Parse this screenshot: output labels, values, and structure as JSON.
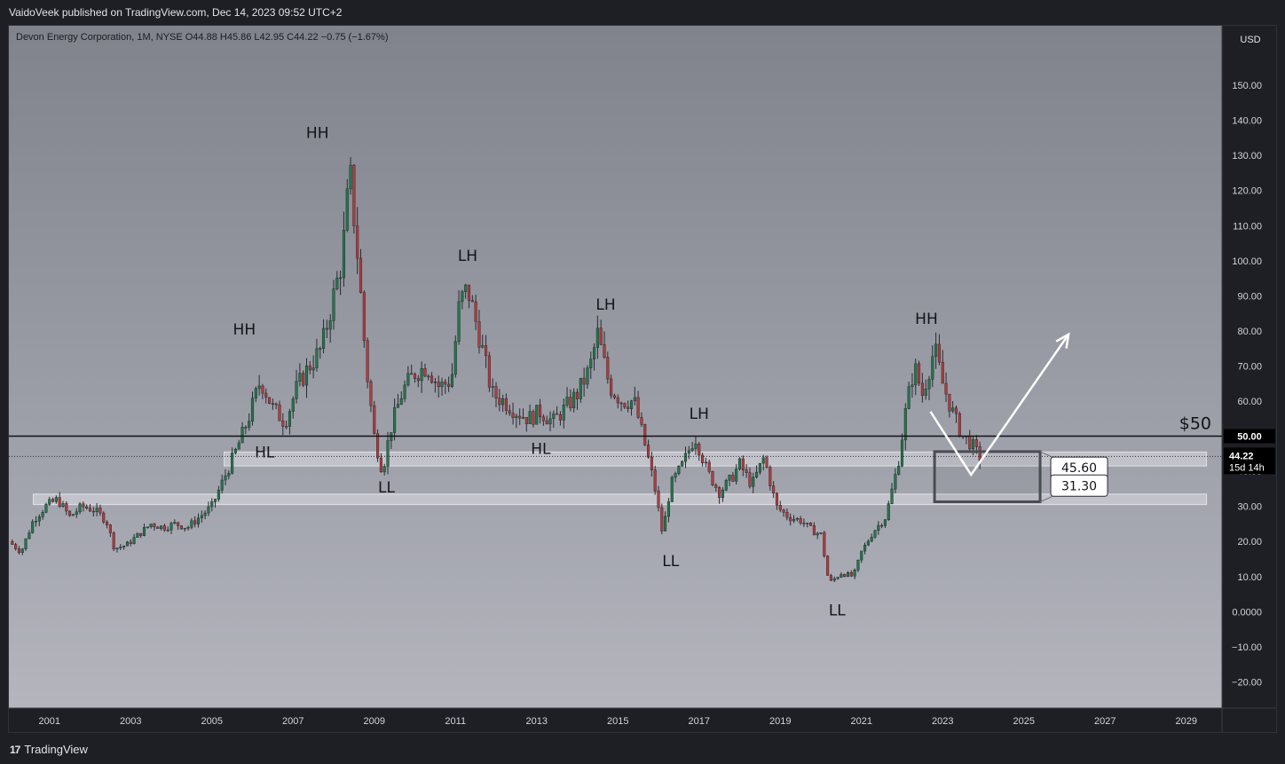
{
  "header": {
    "publisher": "VaidoVeek published on TradingView.com, Dec 14, 2023 09:52 UTC+2"
  },
  "legend": {
    "text": "Devon Energy Corporation, 1M, NYSE  O44.88  H45.86  L42.95  C44.22  −0.75 (−1.67%)"
  },
  "currency": "USD",
  "footer": {
    "brand": "TradingView",
    "brand_mark": "17"
  },
  "colors": {
    "up": "#1e7a4a",
    "down": "#b83a3a",
    "label_bg": "#1e1f24"
  },
  "chart_data": {
    "type": "candlestick",
    "title": "Devon Energy Corporation, 1M, NYSE",
    "ohlc": {
      "open": 44.88,
      "high": 45.86,
      "low": 42.95,
      "close": 44.22,
      "change": -0.75,
      "change_pct": -1.67
    },
    "x_ticks": [
      "2001",
      "2003",
      "2005",
      "2007",
      "2009",
      "2011",
      "2013",
      "2015",
      "2017",
      "2019",
      "2021",
      "2023",
      "2025",
      "2027",
      "2029"
    ],
    "y_ticks": [
      "150.00",
      "140.00",
      "130.00",
      "120.00",
      "110.00",
      "100.00",
      "90.00",
      "80.00",
      "70.00",
      "60.00",
      "50.00",
      "40.00",
      "30.00",
      "20.00",
      "10.00",
      "0.0000",
      "−10.00",
      "−20.00"
    ],
    "ylim": [
      -20,
      150
    ],
    "price_path": [
      [
        2000.0,
        20
      ],
      [
        2000.3,
        17
      ],
      [
        2000.6,
        26
      ],
      [
        2000.9,
        30
      ],
      [
        2001.2,
        32
      ],
      [
        2001.5,
        27
      ],
      [
        2001.8,
        30
      ],
      [
        2002.1,
        29
      ],
      [
        2002.4,
        26
      ],
      [
        2002.6,
        18
      ],
      [
        2002.9,
        19
      ],
      [
        2003.2,
        22
      ],
      [
        2003.5,
        25
      ],
      [
        2003.8,
        24
      ],
      [
        2004.1,
        25
      ],
      [
        2004.4,
        24
      ],
      [
        2004.7,
        27
      ],
      [
        2005.0,
        30
      ],
      [
        2005.3,
        38
      ],
      [
        2005.6,
        46
      ],
      [
        2005.9,
        55
      ],
      [
        2006.2,
        66
      ],
      [
        2006.5,
        58
      ],
      [
        2006.8,
        54
      ],
      [
        2007.1,
        64
      ],
      [
        2007.4,
        70
      ],
      [
        2007.7,
        75
      ],
      [
        2008.0,
        90
      ],
      [
        2008.2,
        100
      ],
      [
        2008.4,
        125
      ],
      [
        2008.6,
        100
      ],
      [
        2008.8,
        70
      ],
      [
        2009.0,
        50
      ],
      [
        2009.2,
        40
      ],
      [
        2009.4,
        52
      ],
      [
        2009.7,
        63
      ],
      [
        2010.0,
        68
      ],
      [
        2010.3,
        70
      ],
      [
        2010.6,
        64
      ],
      [
        2010.9,
        66
      ],
      [
        2011.1,
        88
      ],
      [
        2011.3,
        92
      ],
      [
        2011.6,
        78
      ],
      [
        2011.9,
        62
      ],
      [
        2012.2,
        60
      ],
      [
        2012.5,
        57
      ],
      [
        2012.8,
        55
      ],
      [
        2013.1,
        57
      ],
      [
        2013.4,
        54
      ],
      [
        2013.7,
        58
      ],
      [
        2014.0,
        62
      ],
      [
        2014.3,
        69
      ],
      [
        2014.5,
        79
      ],
      [
        2014.8,
        64
      ],
      [
        2015.1,
        60
      ],
      [
        2015.4,
        60
      ],
      [
        2015.7,
        46
      ],
      [
        2015.9,
        36
      ],
      [
        2016.1,
        22
      ],
      [
        2016.3,
        36
      ],
      [
        2016.6,
        42
      ],
      [
        2016.9,
        50
      ],
      [
        2017.2,
        40
      ],
      [
        2017.5,
        34
      ],
      [
        2017.8,
        38
      ],
      [
        2018.0,
        42
      ],
      [
        2018.3,
        36
      ],
      [
        2018.6,
        44
      ],
      [
        2018.9,
        30
      ],
      [
        2019.2,
        27
      ],
      [
        2019.5,
        26
      ],
      [
        2019.8,
        23
      ],
      [
        2020.0,
        22
      ],
      [
        2020.2,
        8
      ],
      [
        2020.5,
        11
      ],
      [
        2020.8,
        10
      ],
      [
        2021.0,
        17
      ],
      [
        2021.3,
        23
      ],
      [
        2021.6,
        27
      ],
      [
        2021.9,
        42
      ],
      [
        2022.1,
        58
      ],
      [
        2022.3,
        70
      ],
      [
        2022.5,
        62
      ],
      [
        2022.8,
        75
      ],
      [
        2023.0,
        65
      ],
      [
        2023.3,
        55
      ],
      [
        2023.5,
        50
      ],
      [
        2023.7,
        48
      ],
      [
        2023.9,
        44
      ]
    ],
    "annotations": {
      "pivots": [
        {
          "text": "HH",
          "x": 2007.6,
          "y": 135
        },
        {
          "text": "HH",
          "x": 2005.8,
          "y": 79
        },
        {
          "text": "HL",
          "x": 2006.3,
          "y": 44
        },
        {
          "text": "LL",
          "x": 2009.3,
          "y": 34
        },
        {
          "text": "LH",
          "x": 2011.3,
          "y": 100
        },
        {
          "text": "HL",
          "x": 2013.1,
          "y": 45
        },
        {
          "text": "LH",
          "x": 2014.7,
          "y": 86
        },
        {
          "text": "LH",
          "x": 2017.0,
          "y": 55
        },
        {
          "text": "LL",
          "x": 2016.3,
          "y": 13
        },
        {
          "text": "LL",
          "x": 2020.4,
          "y": -1
        },
        {
          "text": "HH",
          "x": 2022.6,
          "y": 82
        }
      ],
      "price_line": {
        "label": "$50",
        "value": 50
      },
      "current_price": {
        "value": 44.22,
        "label": "44.22",
        "countdown": "15d 14h"
      },
      "axis_badge": "50.00",
      "zones": [
        {
          "from_x": 2005.3,
          "to_x": 2029.5,
          "low": 41.5,
          "high": 45.5
        },
        {
          "from_x": 2000.6,
          "to_x": 2029.5,
          "low": 30.5,
          "high": 33.5
        }
      ],
      "box": {
        "from_x": 2022.8,
        "to_x": 2025.4,
        "low": 31.3,
        "high": 45.6
      },
      "box_labels": [
        "45.60",
        "31.30"
      ],
      "path_arrow": [
        [
          2022.7,
          57
        ],
        [
          2023.7,
          39
        ],
        [
          2026.1,
          79
        ]
      ]
    }
  }
}
